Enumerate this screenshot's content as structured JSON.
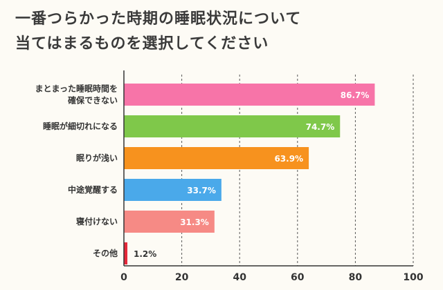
{
  "title": {
    "line1": "一番つらかった時期の睡眠状況について",
    "line2": "当てはまるものを選択してください"
  },
  "chart_data": {
    "type": "bar",
    "orientation": "horizontal",
    "categories": [
      [
        "まとまった睡眠時間を",
        "確保できない"
      ],
      [
        "睡眠が細切れになる"
      ],
      [
        "眠りが浅い"
      ],
      [
        "中途覚醒する"
      ],
      [
        "寝付けない"
      ],
      [
        "その他"
      ]
    ],
    "values": [
      86.7,
      74.7,
      63.9,
      33.7,
      31.3,
      1.2
    ],
    "value_labels": [
      "86.7%",
      "74.7%",
      "63.9%",
      "33.7%",
      "31.3%",
      "1.2%"
    ],
    "colors": [
      "#f774a8",
      "#7fc84a",
      "#f7921e",
      "#4aa9ea",
      "#f68a85",
      "#e5283a"
    ],
    "xlim": [
      0,
      100
    ],
    "xticks": [
      0,
      20,
      40,
      60,
      80,
      100
    ],
    "grid": true
  }
}
